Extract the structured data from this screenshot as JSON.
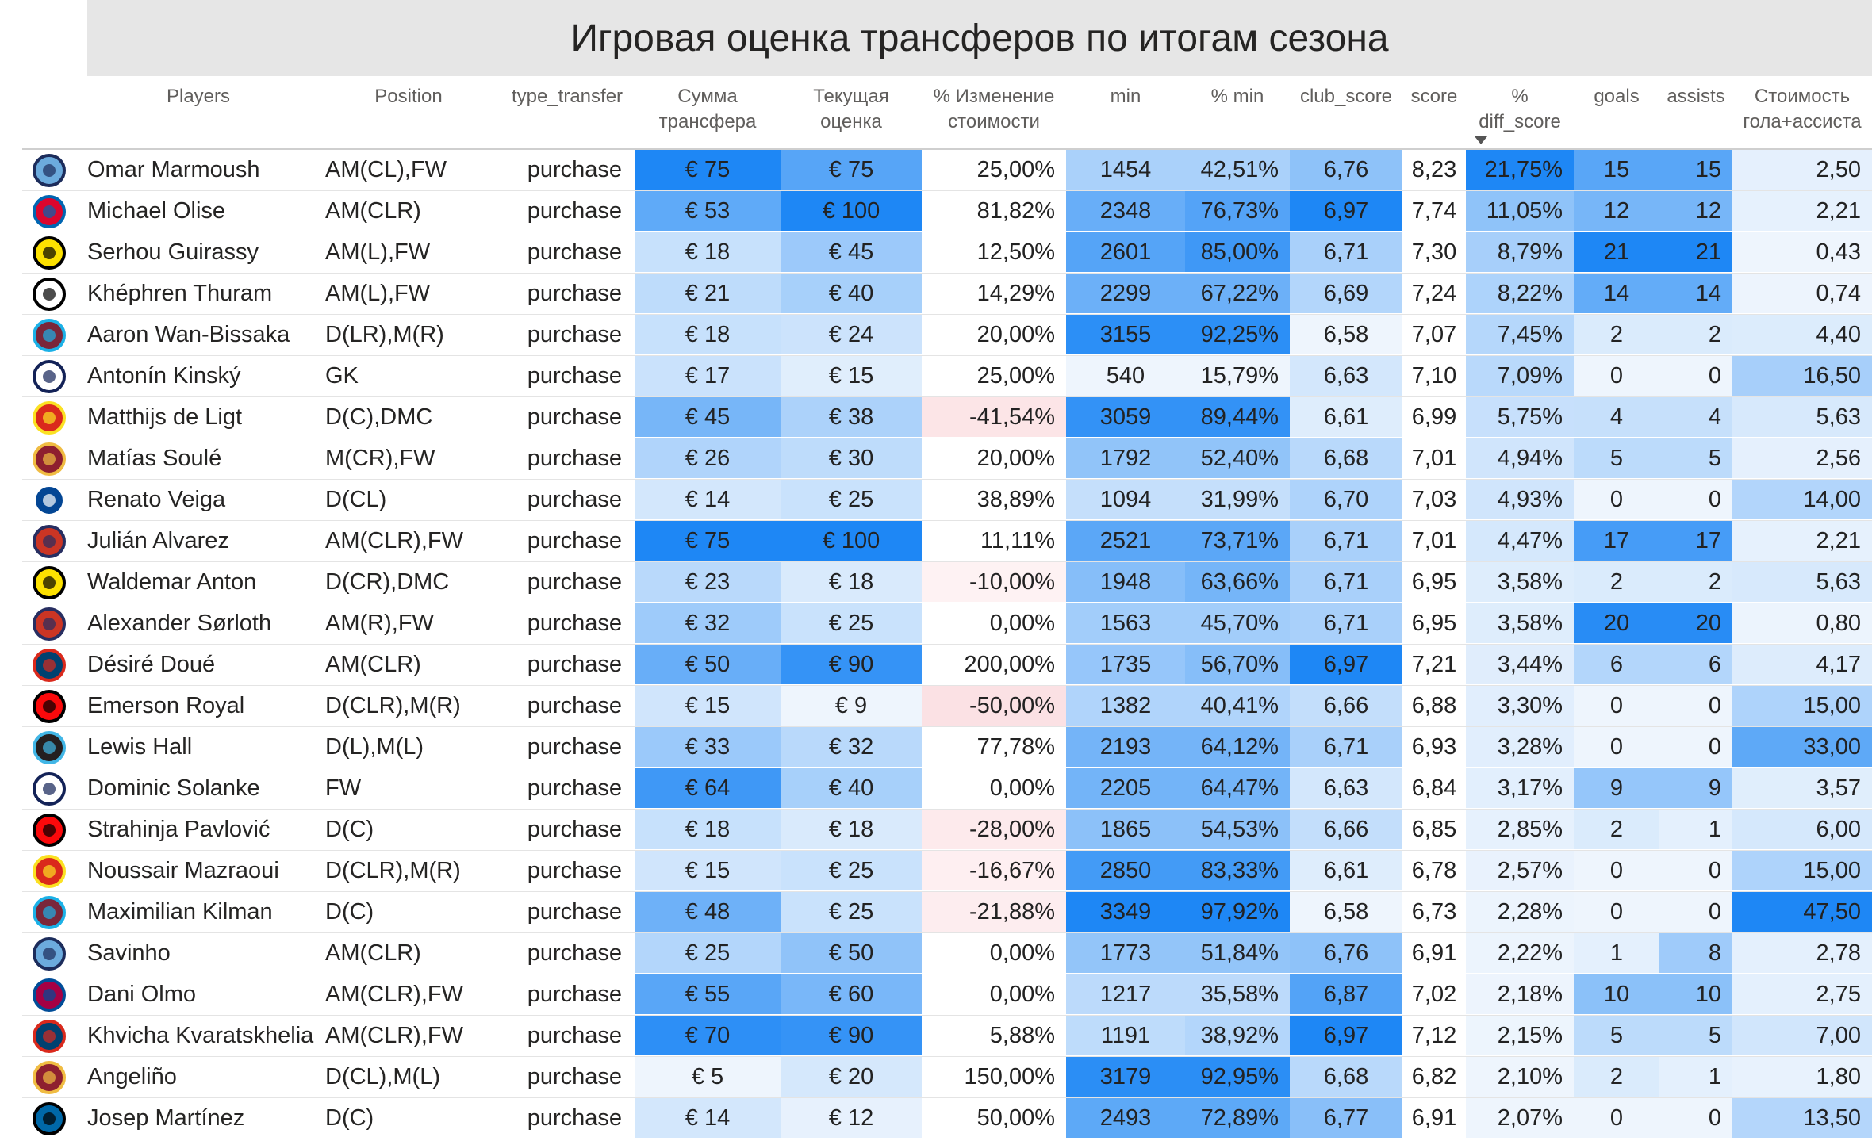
{
  "chart_data": {
    "type": "table",
    "title": "Игровая оценка трансферов по итогам сезона",
    "sorted_by": "% diff_score",
    "sort_direction": "descending",
    "columns": [
      {
        "key": "player",
        "label": [
          "Players"
        ]
      },
      {
        "key": "position",
        "label": [
          "Position"
        ]
      },
      {
        "key": "type_transfer",
        "label": [
          "type_transfer"
        ]
      },
      {
        "key": "fee",
        "label": [
          "Сумма",
          "трансфера"
        ]
      },
      {
        "key": "value",
        "label": [
          "Текущая",
          "оценка"
        ]
      },
      {
        "key": "value_change",
        "label": [
          "% Изменение",
          "стоимости"
        ]
      },
      {
        "key": "min",
        "label": [
          "min"
        ]
      },
      {
        "key": "pct_min",
        "label": [
          "% min"
        ]
      },
      {
        "key": "club_score",
        "label": [
          "club_score"
        ]
      },
      {
        "key": "score",
        "label": [
          "score"
        ]
      },
      {
        "key": "pct_diff",
        "label": [
          "%",
          "diff_score"
        ]
      },
      {
        "key": "goals",
        "label": [
          "goals"
        ]
      },
      {
        "key": "assists",
        "label": [
          "assists"
        ]
      },
      {
        "key": "cost_ga",
        "label": [
          "Стоимость",
          "гола+ассиста"
        ]
      }
    ],
    "rows": [
      {
        "club_logo": "manchester-city",
        "player": "Omar Marmoush",
        "position": "AM(CL),FW",
        "type_transfer": "purchase",
        "fee": "€ 75",
        "value": "€ 75",
        "value_change": "25,00%",
        "min": "1454",
        "pct_min": "42,51%",
        "club_score": "6,76",
        "score": "8,23",
        "pct_diff": "21,75%",
        "goals": "15",
        "assists": "15",
        "cost_ga": "2,50"
      },
      {
        "club_logo": "bayern-munich",
        "player": "Michael Olise",
        "position": "AM(CLR)",
        "type_transfer": "purchase",
        "fee": "€ 53",
        "value": "€ 100",
        "value_change": "81,82%",
        "min": "2348",
        "pct_min": "76,73%",
        "club_score": "6,97",
        "score": "7,74",
        "pct_diff": "11,05%",
        "goals": "12",
        "assists": "12",
        "cost_ga": "2,21"
      },
      {
        "club_logo": "borussia-dortmund",
        "player": "Serhou Guirassy",
        "position": "AM(L),FW",
        "type_transfer": "purchase",
        "fee": "€ 18",
        "value": "€ 45",
        "value_change": "12,50%",
        "min": "2601",
        "pct_min": "85,00%",
        "club_score": "6,71",
        "score": "7,30",
        "pct_diff": "8,79%",
        "goals": "21",
        "assists": "21",
        "cost_ga": "0,43"
      },
      {
        "club_logo": "juventus",
        "player": "Khéphren Thuram",
        "position": "AM(L),FW",
        "type_transfer": "purchase",
        "fee": "€ 21",
        "value": "€ 40",
        "value_change": "14,29%",
        "min": "2299",
        "pct_min": "67,22%",
        "club_score": "6,69",
        "score": "7,24",
        "pct_diff": "8,22%",
        "goals": "14",
        "assists": "14",
        "cost_ga": "0,74"
      },
      {
        "club_logo": "west-ham",
        "player": "Aaron Wan-Bissaka",
        "position": "D(LR),M(R)",
        "type_transfer": "purchase",
        "fee": "€ 18",
        "value": "€ 24",
        "value_change": "20,00%",
        "min": "3155",
        "pct_min": "92,25%",
        "club_score": "6,58",
        "score": "7,07",
        "pct_diff": "7,45%",
        "goals": "2",
        "assists": "2",
        "cost_ga": "4,40"
      },
      {
        "club_logo": "tottenham",
        "player": "Antonín Kinský",
        "position": "GK",
        "type_transfer": "purchase",
        "fee": "€ 17",
        "value": "€ 15",
        "value_change": "25,00%",
        "min": "540",
        "pct_min": "15,79%",
        "club_score": "6,63",
        "score": "7,10",
        "pct_diff": "7,09%",
        "goals": "0",
        "assists": "0",
        "cost_ga": "16,50"
      },
      {
        "club_logo": "manchester-united",
        "player": "Matthijs de Ligt",
        "position": "D(C),DMC",
        "type_transfer": "purchase",
        "fee": "€ 45",
        "value": "€ 38",
        "value_change": "-41,54%",
        "min": "3059",
        "pct_min": "89,44%",
        "club_score": "6,61",
        "score": "6,99",
        "pct_diff": "5,75%",
        "goals": "4",
        "assists": "4",
        "cost_ga": "5,63"
      },
      {
        "club_logo": "as-roma",
        "player": "Matías Soulé",
        "position": "M(CR),FW",
        "type_transfer": "purchase",
        "fee": "€ 26",
        "value": "€ 30",
        "value_change": "20,00%",
        "min": "1792",
        "pct_min": "52,40%",
        "club_score": "6,68",
        "score": "7,01",
        "pct_diff": "4,94%",
        "goals": "5",
        "assists": "5",
        "cost_ga": "2,56"
      },
      {
        "club_logo": "chelsea",
        "player": "Renato Veiga",
        "position": "D(CL)",
        "type_transfer": "purchase",
        "fee": "€ 14",
        "value": "€ 25",
        "value_change": "38,89%",
        "min": "1094",
        "pct_min": "31,99%",
        "club_score": "6,70",
        "score": "7,03",
        "pct_diff": "4,93%",
        "goals": "0",
        "assists": "0",
        "cost_ga": "14,00"
      },
      {
        "club_logo": "atletico-madrid",
        "player": "Julián Alvarez",
        "position": "AM(CLR),FW",
        "type_transfer": "purchase",
        "fee": "€ 75",
        "value": "€ 100",
        "value_change": "11,11%",
        "min": "2521",
        "pct_min": "73,71%",
        "club_score": "6,71",
        "score": "7,01",
        "pct_diff": "4,47%",
        "goals": "17",
        "assists": "17",
        "cost_ga": "2,21"
      },
      {
        "club_logo": "borussia-dortmund",
        "player": "Waldemar Anton",
        "position": "D(CR),DMC",
        "type_transfer": "purchase",
        "fee": "€ 23",
        "value": "€ 18",
        "value_change": "-10,00%",
        "min": "1948",
        "pct_min": "63,66%",
        "club_score": "6,71",
        "score": "6,95",
        "pct_diff": "3,58%",
        "goals": "2",
        "assists": "2",
        "cost_ga": "5,63"
      },
      {
        "club_logo": "atletico-madrid",
        "player": "Alexander Sørloth",
        "position": "AM(R),FW",
        "type_transfer": "purchase",
        "fee": "€ 32",
        "value": "€ 25",
        "value_change": "0,00%",
        "min": "1563",
        "pct_min": "45,70%",
        "club_score": "6,71",
        "score": "6,95",
        "pct_diff": "3,58%",
        "goals": "20",
        "assists": "20",
        "cost_ga": "0,80"
      },
      {
        "club_logo": "psg",
        "player": "Désiré Doué",
        "position": "AM(CLR)",
        "type_transfer": "purchase",
        "fee": "€ 50",
        "value": "€ 90",
        "value_change": "200,00%",
        "min": "1735",
        "pct_min": "56,70%",
        "club_score": "6,97",
        "score": "7,21",
        "pct_diff": "3,44%",
        "goals": "6",
        "assists": "6",
        "cost_ga": "4,17"
      },
      {
        "club_logo": "ac-milan",
        "player": "Emerson Royal",
        "position": "D(CLR),M(R)",
        "type_transfer": "purchase",
        "fee": "€ 15",
        "value": "€ 9",
        "value_change": "-50,00%",
        "min": "1382",
        "pct_min": "40,41%",
        "club_score": "6,66",
        "score": "6,88",
        "pct_diff": "3,30%",
        "goals": "0",
        "assists": "0",
        "cost_ga": "15,00"
      },
      {
        "club_logo": "newcastle",
        "player": "Lewis Hall",
        "position": "D(L),M(L)",
        "type_transfer": "purchase",
        "fee": "€ 33",
        "value": "€ 32",
        "value_change": "77,78%",
        "min": "2193",
        "pct_min": "64,12%",
        "club_score": "6,71",
        "score": "6,93",
        "pct_diff": "3,28%",
        "goals": "0",
        "assists": "0",
        "cost_ga": "33,00"
      },
      {
        "club_logo": "tottenham",
        "player": "Dominic Solanke",
        "position": "FW",
        "type_transfer": "purchase",
        "fee": "€ 64",
        "value": "€ 40",
        "value_change": "0,00%",
        "min": "2205",
        "pct_min": "64,47%",
        "club_score": "6,63",
        "score": "6,84",
        "pct_diff": "3,17%",
        "goals": "9",
        "assists": "9",
        "cost_ga": "3,57"
      },
      {
        "club_logo": "ac-milan",
        "player": "Strahinja Pavlović",
        "position": "D(C)",
        "type_transfer": "purchase",
        "fee": "€ 18",
        "value": "€ 18",
        "value_change": "-28,00%",
        "min": "1865",
        "pct_min": "54,53%",
        "club_score": "6,66",
        "score": "6,85",
        "pct_diff": "2,85%",
        "goals": "2",
        "assists": "1",
        "cost_ga": "6,00"
      },
      {
        "club_logo": "manchester-united",
        "player": "Noussair Mazraoui",
        "position": "D(CLR),M(R)",
        "type_transfer": "purchase",
        "fee": "€ 15",
        "value": "€ 25",
        "value_change": "-16,67%",
        "min": "2850",
        "pct_min": "83,33%",
        "club_score": "6,61",
        "score": "6,78",
        "pct_diff": "2,57%",
        "goals": "0",
        "assists": "0",
        "cost_ga": "15,00"
      },
      {
        "club_logo": "west-ham",
        "player": "Maximilian Kilman",
        "position": "D(C)",
        "type_transfer": "purchase",
        "fee": "€ 48",
        "value": "€ 25",
        "value_change": "-21,88%",
        "min": "3349",
        "pct_min": "97,92%",
        "club_score": "6,58",
        "score": "6,73",
        "pct_diff": "2,28%",
        "goals": "0",
        "assists": "0",
        "cost_ga": "47,50"
      },
      {
        "club_logo": "manchester-city",
        "player": "Savinho",
        "position": "AM(CLR)",
        "type_transfer": "purchase",
        "fee": "€ 25",
        "value": "€ 50",
        "value_change": "0,00%",
        "min": "1773",
        "pct_min": "51,84%",
        "club_score": "6,76",
        "score": "6,91",
        "pct_diff": "2,22%",
        "goals": "1",
        "assists": "8",
        "cost_ga": "2,78"
      },
      {
        "club_logo": "barcelona",
        "player": "Dani Olmo",
        "position": "AM(CLR),FW",
        "type_transfer": "purchase",
        "fee": "€ 55",
        "value": "€ 60",
        "value_change": "0,00%",
        "min": "1217",
        "pct_min": "35,58%",
        "club_score": "6,87",
        "score": "7,02",
        "pct_diff": "2,18%",
        "goals": "10",
        "assists": "10",
        "cost_ga": "2,75"
      },
      {
        "club_logo": "psg",
        "player": "Khvicha Kvaratskhelia",
        "position": "AM(CLR),FW",
        "type_transfer": "purchase",
        "fee": "€ 70",
        "value": "€ 90",
        "value_change": "5,88%",
        "min": "1191",
        "pct_min": "38,92%",
        "club_score": "6,97",
        "score": "7,12",
        "pct_diff": "2,15%",
        "goals": "5",
        "assists": "5",
        "cost_ga": "7,00"
      },
      {
        "club_logo": "as-roma",
        "player": "Angeliño",
        "position": "D(CL),M(L)",
        "type_transfer": "purchase",
        "fee": "€ 5",
        "value": "€ 20",
        "value_change": "150,00%",
        "min": "3179",
        "pct_min": "92,95%",
        "club_score": "6,68",
        "score": "6,82",
        "pct_diff": "2,10%",
        "goals": "2",
        "assists": "1",
        "cost_ga": "1,80"
      },
      {
        "club_logo": "inter",
        "player": "Josep Martínez",
        "position": "D(C)",
        "type_transfer": "purchase",
        "fee": "€ 14",
        "value": "€ 12",
        "value_change": "50,00%",
        "min": "2493",
        "pct_min": "72,89%",
        "club_score": "6,77",
        "score": "6,91",
        "pct_diff": "2,07%",
        "goals": "0",
        "assists": "0",
        "cost_ga": "13,50"
      }
    ],
    "colors": {
      "header_text": "#605e5c",
      "title_bar": "#e6e6e6",
      "blue_scale_low": "#eef5fd",
      "blue_scale_high": "#1e87f5",
      "negative_fill": "#fbe1e4"
    }
  }
}
